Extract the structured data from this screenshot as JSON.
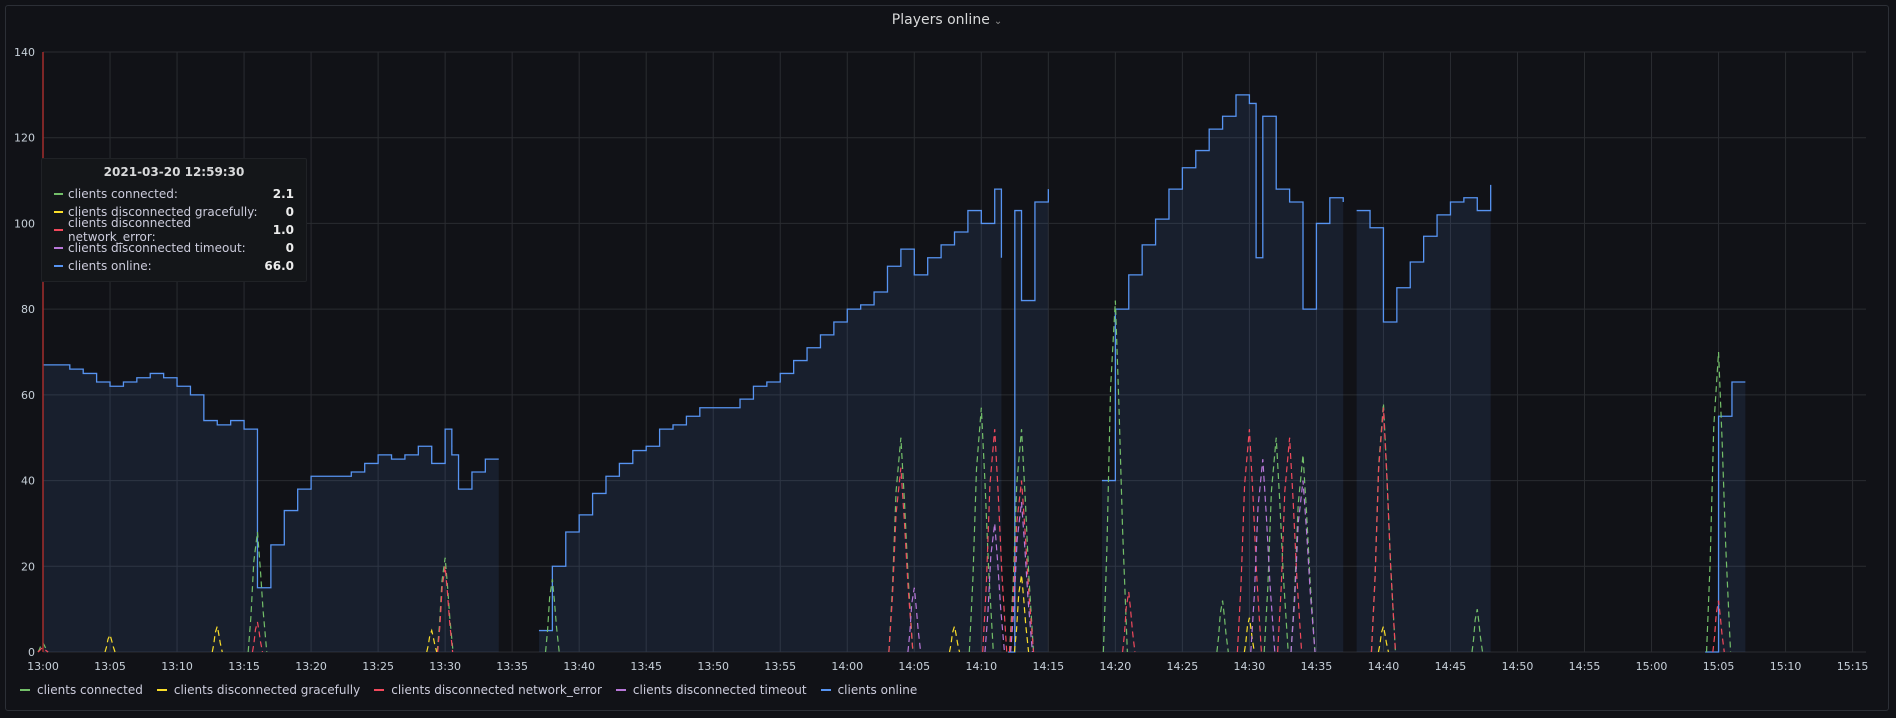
{
  "panel": {
    "title": "Players online",
    "title_chevron": "⌄"
  },
  "tooltip": {
    "timestamp": "2021-03-20 12:59:30",
    "rows": [
      {
        "label": "clients connected:",
        "value": "2.1",
        "color": "#73bf69"
      },
      {
        "label": "clients disconnected gracefully:",
        "value": "0",
        "color": "#fade2a"
      },
      {
        "label": "clients disconnected network_error:",
        "value": "1.0",
        "color": "#f2495c"
      },
      {
        "label": "clients disconnected timeout:",
        "value": "0",
        "color": "#b877d9"
      },
      {
        "label": "clients online:",
        "value": "66.0",
        "color": "#5794f2"
      }
    ]
  },
  "chart_data": {
    "type": "line",
    "title": "Players online",
    "x_unit": "time (HH:MM)",
    "x_ticks": [
      "13:00",
      "13:05",
      "13:10",
      "13:15",
      "13:20",
      "13:25",
      "13:30",
      "13:35",
      "13:40",
      "13:45",
      "13:50",
      "13:55",
      "14:00",
      "14:05",
      "14:10",
      "14:15",
      "14:20",
      "14:25",
      "14:30",
      "14:35",
      "14:40",
      "14:45",
      "14:50",
      "14:55",
      "15:00",
      "15:05",
      "15:10",
      "15:15"
    ],
    "xlim": [
      "13:00",
      "15:16"
    ],
    "y_ticks": [
      0,
      20,
      40,
      60,
      80,
      100,
      120,
      140
    ],
    "ylim": [
      0,
      140
    ],
    "grid": true,
    "legend_position": "bottom",
    "series": [
      {
        "name": "clients online",
        "color": "#5794f2",
        "style": "solid-step-area",
        "segments": [
          [
            [
              "13:00",
              67
            ],
            [
              "13:02",
              66
            ],
            [
              "13:03",
              65
            ],
            [
              "13:04",
              63
            ],
            [
              "13:05",
              62
            ],
            [
              "13:06",
              63
            ],
            [
              "13:07",
              64
            ],
            [
              "13:08",
              65
            ],
            [
              "13:09",
              64
            ],
            [
              "13:10",
              62
            ],
            [
              "13:11",
              60
            ],
            [
              "13:12",
              54
            ],
            [
              "13:13",
              53
            ],
            [
              "13:14",
              54
            ],
            [
              "13:15",
              52
            ],
            [
              "13:16",
              15
            ],
            [
              "13:17",
              25
            ],
            [
              "13:18",
              33
            ],
            [
              "13:19",
              38
            ],
            [
              "13:20",
              41
            ],
            [
              "13:22",
              41
            ],
            [
              "13:23",
              42
            ],
            [
              "13:24",
              44
            ],
            [
              "13:25",
              46
            ],
            [
              "13:26",
              45
            ],
            [
              "13:27",
              46
            ],
            [
              "13:28",
              48
            ],
            [
              "13:29",
              44
            ],
            [
              "13:30",
              52
            ],
            [
              "13:30.5",
              46
            ],
            [
              "13:31",
              38
            ],
            [
              "13:32",
              42
            ],
            [
              "13:33",
              45
            ],
            [
              "13:34",
              45
            ]
          ],
          [
            [
              "13:37",
              5
            ],
            [
              "13:38",
              20
            ],
            [
              "13:39",
              28
            ],
            [
              "13:40",
              32
            ],
            [
              "13:41",
              37
            ],
            [
              "13:42",
              41
            ],
            [
              "13:43",
              44
            ],
            [
              "13:44",
              47
            ],
            [
              "13:45",
              48
            ],
            [
              "13:46",
              52
            ],
            [
              "13:47",
              53
            ],
            [
              "13:48",
              55
            ],
            [
              "13:49",
              57
            ],
            [
              "13:50",
              57
            ],
            [
              "13:51",
              57
            ],
            [
              "13:52",
              59
            ],
            [
              "13:53",
              62
            ],
            [
              "13:54",
              63
            ],
            [
              "13:55",
              65
            ],
            [
              "13:56",
              68
            ],
            [
              "13:57",
              71
            ],
            [
              "13:58",
              74
            ],
            [
              "13:59",
              77
            ],
            [
              "14:00",
              80
            ],
            [
              "14:01",
              81
            ],
            [
              "14:02",
              84
            ],
            [
              "14:03",
              90
            ],
            [
              "14:04",
              94
            ],
            [
              "14:05",
              88
            ],
            [
              "14:06",
              92
            ],
            [
              "14:07",
              95
            ],
            [
              "14:08",
              98
            ],
            [
              "14:09",
              103
            ],
            [
              "14:10",
              100
            ],
            [
              "14:11",
              108
            ],
            [
              "14:11.5",
              92
            ]
          ],
          [
            [
              "14:12",
              0
            ],
            [
              "14:12.5",
              103
            ],
            [
              "14:13",
              82
            ],
            [
              "14:14",
              105
            ],
            [
              "14:15",
              108
            ]
          ],
          [
            [
              "14:19",
              40
            ],
            [
              "14:20",
              80
            ],
            [
              "14:21",
              88
            ],
            [
              "14:22",
              95
            ],
            [
              "14:23",
              101
            ],
            [
              "14:24",
              108
            ],
            [
              "14:25",
              113
            ],
            [
              "14:26",
              117
            ],
            [
              "14:27",
              122
            ],
            [
              "14:28",
              125
            ],
            [
              "14:29",
              130
            ],
            [
              "14:30",
              128
            ],
            [
              "14:30.5",
              92
            ],
            [
              "14:31",
              125
            ],
            [
              "14:32",
              108
            ],
            [
              "14:33",
              105
            ],
            [
              "14:34",
              80
            ],
            [
              "14:35",
              100
            ],
            [
              "14:36",
              106
            ],
            [
              "14:37",
              105
            ]
          ],
          [
            [
              "14:38",
              103
            ],
            [
              "14:39",
              99
            ],
            [
              "14:40",
              77
            ],
            [
              "14:41",
              85
            ],
            [
              "14:42",
              91
            ],
            [
              "14:43",
              97
            ],
            [
              "14:44",
              102
            ],
            [
              "14:45",
              105
            ],
            [
              "14:46",
              106
            ],
            [
              "14:47",
              103
            ],
            [
              "14:48",
              109
            ]
          ],
          [
            [
              "15:04",
              0
            ],
            [
              "15:05",
              55
            ],
            [
              "15:06",
              63
            ],
            [
              "15:07",
              63
            ]
          ]
        ]
      },
      {
        "name": "clients connected",
        "color": "#73bf69",
        "style": "dashed",
        "peaks": [
          [
            "13:00",
            2.1
          ],
          [
            "13:16",
            28
          ],
          [
            "13:30",
            22
          ],
          [
            "13:38",
            17
          ],
          [
            "14:04",
            50
          ],
          [
            "14:10",
            57
          ],
          [
            "14:13",
            52
          ],
          [
            "14:20",
            82
          ],
          [
            "14:28",
            12
          ],
          [
            "14:32",
            50
          ],
          [
            "14:34",
            46
          ],
          [
            "14:40",
            58
          ],
          [
            "14:47",
            10
          ],
          [
            "15:05",
            70
          ]
        ]
      },
      {
        "name": "clients disconnected gracefully",
        "color": "#fade2a",
        "style": "dashed",
        "peaks": [
          [
            "13:00",
            0
          ],
          [
            "13:05",
            4
          ],
          [
            "13:13",
            6
          ],
          [
            "13:29",
            5
          ],
          [
            "14:08",
            6
          ],
          [
            "14:13",
            18
          ],
          [
            "14:30",
            8
          ],
          [
            "14:40",
            6
          ]
        ]
      },
      {
        "name": "clients disconnected network_error",
        "color": "#f2495c",
        "style": "dashed",
        "peaks": [
          [
            "13:00",
            1.0
          ],
          [
            "13:16",
            7
          ],
          [
            "13:30",
            20
          ],
          [
            "14:04",
            43
          ],
          [
            "14:11",
            52
          ],
          [
            "14:13",
            40
          ],
          [
            "14:21",
            14
          ],
          [
            "14:30",
            52
          ],
          [
            "14:33",
            50
          ],
          [
            "14:40",
            57
          ],
          [
            "15:05",
            12
          ]
        ]
      },
      {
        "name": "clients disconnected timeout",
        "color": "#b877d9",
        "style": "dashed",
        "peaks": [
          [
            "13:00",
            0
          ],
          [
            "14:05",
            15
          ],
          [
            "14:11",
            30
          ],
          [
            "14:13",
            35
          ],
          [
            "14:31",
            45
          ],
          [
            "14:34",
            40
          ]
        ]
      }
    ]
  }
}
